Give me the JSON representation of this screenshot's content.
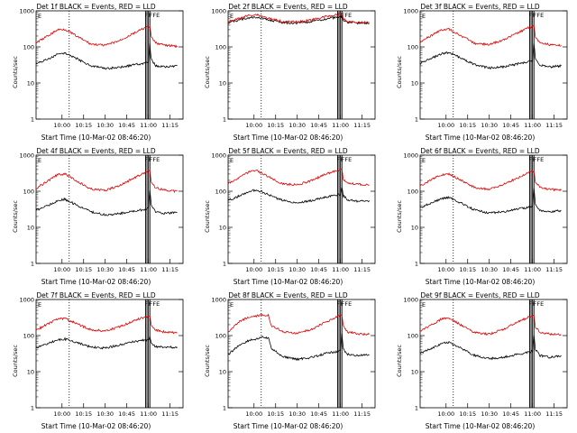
{
  "chart_data": [
    {
      "type": "line",
      "title": "Det 1f BLACK = Events, RED = LLD",
      "xlabel": "Start Time (10-Mar-02 08:46:20)",
      "ylabel": "Counts/sec",
      "yscale": "log",
      "ylim": [
        1,
        1000
      ],
      "x_ticks": [
        "10:00",
        "10:15",
        "10:30",
        "10:45",
        "11:00",
        "11:15"
      ],
      "y_ticks": [
        "1",
        "10",
        "100",
        "1000"
      ],
      "annotations": [
        "E",
        "FF",
        "FFE"
      ],
      "series": [
        {
          "name": "BLACK",
          "color": "#000000",
          "x": [
            "09:42",
            "09:50",
            "09:57",
            "10:02",
            "10:10",
            "10:20",
            "10:30",
            "10:40",
            "10:50",
            "10:57",
            "11:00",
            "11:01",
            "11:02",
            "11:05",
            "11:12",
            "11:20"
          ],
          "values": [
            35,
            45,
            62,
            68,
            48,
            30,
            25,
            27,
            32,
            35,
            38,
            120,
            45,
            30,
            28,
            30
          ]
        },
        {
          "name": "RED",
          "color": "#e00000",
          "x": [
            "09:42",
            "09:50",
            "09:57",
            "10:02",
            "10:10",
            "10:20",
            "10:30",
            "10:40",
            "10:50",
            "10:57",
            "11:00",
            "11:01",
            "11:02",
            "11:05",
            "11:12",
            "11:20"
          ],
          "values": [
            130,
            200,
            300,
            310,
            200,
            120,
            110,
            150,
            240,
            330,
            360,
            380,
            180,
            130,
            110,
            105
          ]
        }
      ]
    },
    {
      "type": "line",
      "title": "Det 2f BLACK = Events, RED = LLD",
      "xlabel": "Start Time (10-Mar-02 08:46:20)",
      "ylabel": "Counts/sec",
      "yscale": "log",
      "ylim": [
        1,
        1000
      ],
      "x_ticks": [
        "10:00",
        "10:15",
        "10:30",
        "10:45",
        "11:00",
        "11:15"
      ],
      "y_ticks": [
        "1",
        "10",
        "100",
        "1000"
      ],
      "annotations": [
        "E",
        "FF",
        "FFE"
      ],
      "series": [
        {
          "name": "BLACK",
          "color": "#000000",
          "x": [
            "09:42",
            "09:50",
            "09:57",
            "10:02",
            "10:10",
            "10:20",
            "10:30",
            "10:40",
            "10:50",
            "10:57",
            "11:00",
            "11:01",
            "11:02",
            "11:05",
            "11:12",
            "11:20"
          ],
          "values": [
            470,
            560,
            650,
            670,
            560,
            470,
            460,
            500,
            600,
            660,
            680,
            680,
            560,
            480,
            460,
            450
          ]
        },
        {
          "name": "RED",
          "color": "#e00000",
          "x": [
            "09:42",
            "09:50",
            "09:57",
            "10:02",
            "10:10",
            "10:20",
            "10:30",
            "10:40",
            "10:50",
            "10:57",
            "11:00",
            "11:01",
            "11:02",
            "11:05",
            "11:12",
            "11:20"
          ],
          "values": [
            500,
            620,
            760,
            790,
            620,
            500,
            490,
            560,
            700,
            770,
            790,
            790,
            620,
            500,
            480,
            470
          ]
        }
      ]
    },
    {
      "type": "line",
      "title": "Det 3f BLACK = Events, RED = LLD",
      "xlabel": "Start Time (10-Mar-02 08:46:20)",
      "ylabel": "Counts/sec",
      "yscale": "log",
      "ylim": [
        1,
        1000
      ],
      "x_ticks": [
        "10:00",
        "10:15",
        "10:30",
        "10:45",
        "11:00",
        "11:15"
      ],
      "y_ticks": [
        "1",
        "10",
        "100",
        "1000"
      ],
      "annotations": [
        "E",
        "FF",
        "FFE"
      ],
      "series": [
        {
          "name": "BLACK",
          "color": "#000000",
          "x": [
            "09:42",
            "09:50",
            "09:57",
            "10:02",
            "10:10",
            "10:20",
            "10:30",
            "10:40",
            "10:50",
            "10:57",
            "11:00",
            "11:01",
            "11:02",
            "11:05",
            "11:12",
            "11:20"
          ],
          "values": [
            35,
            48,
            65,
            70,
            50,
            32,
            26,
            28,
            34,
            38,
            40,
            130,
            48,
            32,
            28,
            30
          ]
        },
        {
          "name": "RED",
          "color": "#e00000",
          "x": [
            "09:42",
            "09:50",
            "09:57",
            "10:02",
            "10:10",
            "10:20",
            "10:30",
            "10:40",
            "10:50",
            "10:57",
            "11:00",
            "11:01",
            "11:02",
            "11:05",
            "11:12",
            "11:20"
          ],
          "values": [
            140,
            210,
            300,
            310,
            210,
            125,
            115,
            160,
            250,
            340,
            370,
            390,
            185,
            135,
            115,
            110
          ]
        }
      ]
    },
    {
      "type": "line",
      "title": "Det 4f BLACK = Events, RED = LLD",
      "xlabel": "Start Time (10-Mar-02 08:46:20)",
      "ylabel": "Counts/sec",
      "yscale": "log",
      "ylim": [
        1,
        1000
      ],
      "x_ticks": [
        "10:00",
        "10:15",
        "10:30",
        "10:45",
        "11:00",
        "11:15"
      ],
      "y_ticks": [
        "1",
        "10",
        "100",
        "1000"
      ],
      "annotations": [
        "E",
        "FF",
        "FFE"
      ],
      "series": [
        {
          "name": "BLACK",
          "color": "#000000",
          "x": [
            "09:42",
            "09:50",
            "09:57",
            "10:02",
            "10:10",
            "10:20",
            "10:30",
            "10:40",
            "10:50",
            "10:57",
            "11:00",
            "11:01",
            "11:02",
            "11:05",
            "11:12",
            "11:20"
          ],
          "values": [
            30,
            40,
            55,
            60,
            42,
            27,
            22,
            24,
            28,
            31,
            33,
            110,
            40,
            27,
            24,
            26
          ]
        },
        {
          "name": "RED",
          "color": "#e00000",
          "x": [
            "09:42",
            "09:50",
            "09:57",
            "10:02",
            "10:10",
            "10:20",
            "10:30",
            "10:40",
            "10:50",
            "10:57",
            "11:00",
            "11:01",
            "11:02",
            "11:05",
            "11:12",
            "11:20"
          ],
          "values": [
            120,
            190,
            290,
            300,
            195,
            115,
            105,
            145,
            235,
            320,
            350,
            370,
            170,
            125,
            105,
            100
          ]
        }
      ]
    },
    {
      "type": "line",
      "title": "Det 5f BLACK = Events, RED = LLD",
      "xlabel": "Start Time (10-Mar-02 08:46:20)",
      "ylabel": "Counts/sec",
      "yscale": "log",
      "ylim": [
        1,
        1000
      ],
      "x_ticks": [
        "10:00",
        "10:15",
        "10:30",
        "10:45",
        "11:00",
        "11:15"
      ],
      "y_ticks": [
        "1",
        "10",
        "100",
        "1000"
      ],
      "annotations": [
        "E",
        "FF",
        "FFE"
      ],
      "series": [
        {
          "name": "BLACK",
          "color": "#000000",
          "x": [
            "09:42",
            "09:50",
            "09:57",
            "10:02",
            "10:10",
            "10:20",
            "10:30",
            "10:40",
            "10:50",
            "10:57",
            "11:00",
            "11:01",
            "11:02",
            "11:05",
            "11:12",
            "11:20"
          ],
          "values": [
            55,
            75,
            100,
            110,
            80,
            55,
            48,
            55,
            70,
            78,
            82,
            130,
            75,
            58,
            52,
            55
          ]
        },
        {
          "name": "RED",
          "color": "#e00000",
          "x": [
            "09:42",
            "09:50",
            "09:57",
            "10:02",
            "10:10",
            "10:20",
            "10:30",
            "10:40",
            "10:50",
            "10:57",
            "11:00",
            "11:01",
            "11:02",
            "11:05",
            "11:12",
            "11:20"
          ],
          "values": [
            160,
            240,
            350,
            370,
            250,
            160,
            150,
            200,
            300,
            370,
            390,
            390,
            220,
            170,
            155,
            150
          ]
        }
      ]
    },
    {
      "type": "line",
      "title": "Det 6f BLACK = Events, RED = LLD",
      "xlabel": "Start Time (10-Mar-02 08:46:20)",
      "ylabel": "Counts/sec",
      "yscale": "log",
      "ylim": [
        1,
        1000
      ],
      "x_ticks": [
        "10:00",
        "10:15",
        "10:30",
        "10:45",
        "11:00",
        "11:15"
      ],
      "y_ticks": [
        "1",
        "10",
        "100",
        "1000"
      ],
      "annotations": [
        "E",
        "FF",
        "FFE"
      ],
      "series": [
        {
          "name": "BLACK",
          "color": "#000000",
          "x": [
            "09:42",
            "09:50",
            "09:57",
            "10:02",
            "10:10",
            "10:20",
            "10:30",
            "10:40",
            "10:50",
            "10:57",
            "11:00",
            "11:01",
            "11:02",
            "11:05",
            "11:12",
            "11:20"
          ],
          "values": [
            35,
            48,
            62,
            68,
            48,
            30,
            25,
            27,
            32,
            36,
            38,
            120,
            45,
            30,
            27,
            29
          ]
        },
        {
          "name": "RED",
          "color": "#e00000",
          "x": [
            "09:42",
            "09:50",
            "09:57",
            "10:02",
            "10:10",
            "10:20",
            "10:30",
            "10:40",
            "10:50",
            "10:57",
            "11:00",
            "11:01",
            "11:02",
            "11:05",
            "11:12",
            "11:20"
          ],
          "values": [
            140,
            210,
            290,
            300,
            205,
            125,
            115,
            155,
            240,
            320,
            350,
            370,
            180,
            130,
            112,
            108
          ]
        }
      ]
    },
    {
      "type": "line",
      "title": "Det 7f BLACK = Events, RED = LLD",
      "xlabel": "Start Time (10-Mar-02 08:46:20)",
      "ylabel": "Counts/sec",
      "yscale": "log",
      "ylim": [
        1,
        1000
      ],
      "x_ticks": [
        "10:00",
        "10:15",
        "10:30",
        "10:45",
        "11:00",
        "11:15"
      ],
      "y_ticks": [
        "1",
        "10",
        "100",
        "1000"
      ],
      "annotations": [
        "E",
        "FF",
        "FFE"
      ],
      "series": [
        {
          "name": "BLACK",
          "color": "#000000",
          "x": [
            "09:42",
            "09:50",
            "09:57",
            "10:02",
            "10:10",
            "10:20",
            "10:30",
            "10:40",
            "10:50",
            "10:57",
            "11:00",
            "11:01",
            "11:02",
            "11:05",
            "11:12",
            "11:20"
          ],
          "values": [
            45,
            60,
            75,
            80,
            65,
            48,
            45,
            55,
            68,
            75,
            78,
            90,
            62,
            50,
            47,
            48
          ]
        },
        {
          "name": "RED",
          "color": "#e00000",
          "x": [
            "09:42",
            "09:50",
            "09:57",
            "10:02",
            "10:10",
            "10:20",
            "10:30",
            "10:40",
            "10:50",
            "10:57",
            "11:00",
            "11:01",
            "11:02",
            "11:05",
            "11:12",
            "11:20"
          ],
          "values": [
            140,
            210,
            290,
            300,
            215,
            145,
            135,
            175,
            260,
            320,
            350,
            360,
            190,
            140,
            125,
            120
          ]
        }
      ]
    },
    {
      "type": "line",
      "title": "Det 8f BLACK = Events, RED = LLD",
      "xlabel": "Start Time (10-Mar-02 08:46:20)",
      "ylabel": "Counts/sec",
      "yscale": "log",
      "ylim": [
        1,
        1000
      ],
      "x_ticks": [
        "10:00",
        "10:15",
        "10:30",
        "10:45",
        "11:00",
        "11:15"
      ],
      "y_ticks": [
        "1",
        "10",
        "100",
        "1000"
      ],
      "annotations": [
        "E",
        "FF",
        "FFE"
      ],
      "series": [
        {
          "name": "BLACK",
          "color": "#000000",
          "x": [
            "09:42",
            "09:50",
            "09:57",
            "10:02",
            "10:05",
            "10:10",
            "10:12",
            "10:20",
            "10:30",
            "10:40",
            "10:50",
            "10:57",
            "11:00",
            "11:01",
            "11:02",
            "11:05",
            "11:12",
            "11:20"
          ],
          "values": [
            30,
            55,
            75,
            80,
            90,
            85,
            45,
            26,
            22,
            25,
            32,
            36,
            38,
            110,
            42,
            30,
            28,
            29
          ]
        },
        {
          "name": "RED",
          "color": "#e00000",
          "x": [
            "09:42",
            "09:50",
            "09:57",
            "10:02",
            "10:05",
            "10:10",
            "10:12",
            "10:20",
            "10:30",
            "10:40",
            "10:50",
            "10:57",
            "11:00",
            "11:01",
            "11:02",
            "11:05",
            "11:12",
            "11:20"
          ],
          "values": [
            120,
            250,
            330,
            350,
            380,
            360,
            190,
            130,
            115,
            150,
            240,
            330,
            360,
            380,
            180,
            125,
            112,
            108
          ]
        }
      ]
    },
    {
      "type": "line",
      "title": "Det 9f BLACK = Events, RED = LLD",
      "xlabel": "Start Time (10-Mar-02 08:46:20)",
      "ylabel": "Counts/sec",
      "yscale": "log",
      "ylim": [
        1,
        1000
      ],
      "x_ticks": [
        "10:00",
        "10:15",
        "10:30",
        "10:45",
        "11:00",
        "11:15"
      ],
      "y_ticks": [
        "1",
        "10",
        "100",
        "1000"
      ],
      "annotations": [
        "E",
        "FF",
        "FFE"
      ],
      "series": [
        {
          "name": "BLACK",
          "color": "#000000",
          "x": [
            "09:42",
            "09:50",
            "09:57",
            "10:02",
            "10:10",
            "10:20",
            "10:30",
            "10:40",
            "10:50",
            "10:57",
            "11:00",
            "11:01",
            "11:02",
            "11:05",
            "11:12",
            "11:20"
          ],
          "values": [
            32,
            45,
            60,
            65,
            46,
            28,
            23,
            25,
            30,
            34,
            36,
            110,
            42,
            28,
            25,
            28
          ]
        },
        {
          "name": "RED",
          "color": "#e00000",
          "x": [
            "09:42",
            "09:50",
            "09:57",
            "10:02",
            "10:10",
            "10:20",
            "10:30",
            "10:40",
            "10:50",
            "10:57",
            "11:00",
            "11:01",
            "11:02",
            "11:05",
            "11:12",
            "11:20"
          ],
          "values": [
            130,
            200,
            290,
            300,
            200,
            120,
            110,
            150,
            240,
            320,
            350,
            370,
            175,
            125,
            110,
            105
          ]
        }
      ]
    }
  ]
}
